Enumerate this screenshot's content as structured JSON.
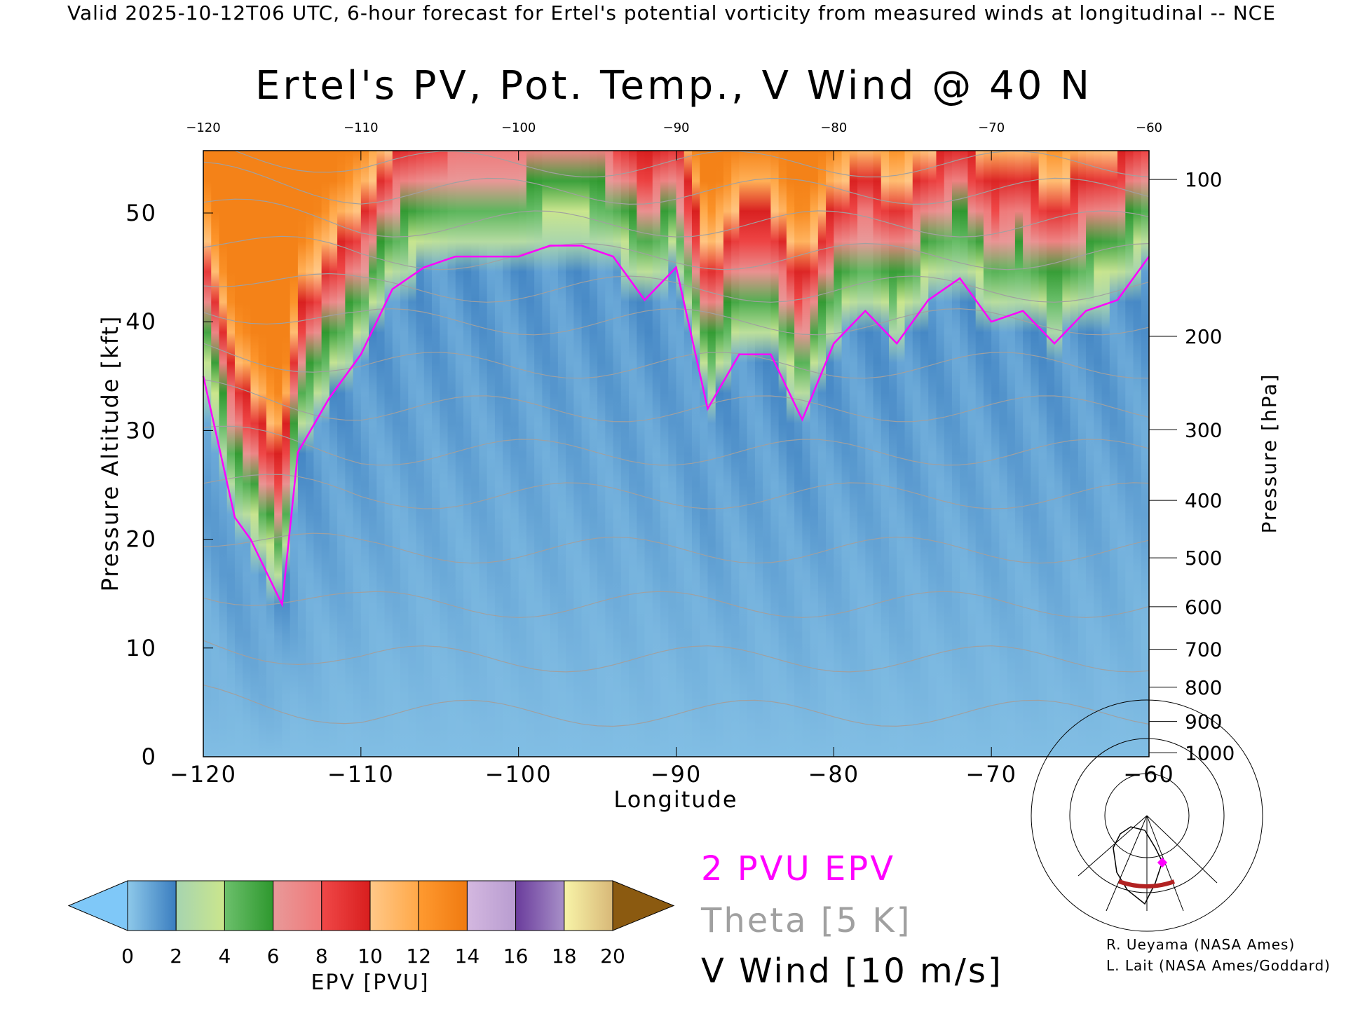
{
  "top_note": "Valid 2025-10-12T06 UTC, 6-hour forecast for Ertel's potential vorticity from measured winds at longitudinal -- NCE",
  "legend": {
    "epv": "2 PVU EPV",
    "theta": "Theta [5 K]",
    "wind": "V Wind [10 m/s]"
  },
  "credits": [
    "R. Ueyama (NASA Ames)",
    "L. Lait (NASA Ames/Goddard)"
  ],
  "colors": {
    "pv2": "#ff00ff",
    "theta": "#a0a0a0",
    "wind": "#000000",
    "map_track": "#b22222"
  },
  "chart_data": {
    "type": "heatmap",
    "title": "Ertel's PV, Pot. Temp., V Wind @ 40 N",
    "xlabel": "Longitude",
    "ylabel": "Pressure Altitude [kft]",
    "ylabel_right": "Pressure [hPa]",
    "xlim": [
      -120,
      -60
    ],
    "ylim": [
      0,
      55.7
    ],
    "x_ticks": [
      "-120",
      "-110",
      "-100",
      "-90",
      "-80",
      "-70",
      "-60"
    ],
    "x_tick_values": [
      -120,
      -110,
      -100,
      -90,
      -80,
      -70,
      -60
    ],
    "y_ticks": [
      "0",
      "10",
      "20",
      "30",
      "40",
      "50"
    ],
    "y_tick_values": [
      0,
      10,
      20,
      30,
      40,
      50
    ],
    "pressure_ticks": [
      "100",
      "200",
      "300",
      "400",
      "500",
      "600",
      "700",
      "800",
      "900",
      "1000"
    ],
    "pressure_tick_values": [
      100,
      200,
      300,
      400,
      500,
      600,
      700,
      800,
      900,
      1000
    ],
    "tropopause_2pvu": {
      "lon": [
        -120,
        -118,
        -117,
        -115,
        -114,
        -112,
        -110,
        -108,
        -106,
        -104,
        -102,
        -100,
        -98,
        -96,
        -94,
        -92,
        -90,
        -88,
        -86,
        -84,
        -82,
        -80,
        -78,
        -76,
        -74,
        -72,
        -70,
        -68,
        -66,
        -64,
        -62,
        -60
      ],
      "kft": [
        35,
        22,
        20,
        14,
        28,
        33,
        37,
        43,
        45,
        46,
        46,
        46,
        47,
        47,
        46,
        42,
        45,
        32,
        37,
        37,
        31,
        38,
        41,
        38,
        42,
        44,
        40,
        41,
        38,
        41,
        42,
        46
      ]
    },
    "theta_levels_kft": [
      4,
      9,
      14,
      19,
      24,
      28,
      32,
      36,
      40,
      43,
      46,
      49,
      52,
      54.5
    ],
    "colorbar": {
      "label": "EPV [PVU]",
      "tick_labels": [
        "0",
        "2",
        "4",
        "6",
        "8",
        "10",
        "12",
        "14",
        "16",
        "18",
        "20"
      ],
      "levels": [
        0,
        2,
        4,
        6,
        8,
        10,
        12,
        14,
        16,
        18,
        20
      ],
      "under_color": "#7fc8f8",
      "over_color": "#8b5a10",
      "interval_colors": [
        [
          "#8ec9ea",
          "#3a7dbf"
        ],
        [
          "#a6d4b0",
          "#cbe68c"
        ],
        [
          "#6cc06c",
          "#2e982e"
        ],
        [
          "#e89a9a",
          "#f07878"
        ],
        [
          "#f04848",
          "#d81e1e"
        ],
        [
          "#ffc888",
          "#ffa848"
        ],
        [
          "#ff9a30",
          "#f07a10"
        ],
        [
          "#d4b8e0",
          "#b89cd0"
        ],
        [
          "#6a3c9c",
          "#a890c8"
        ],
        [
          "#f8f4a8",
          "#d8b878"
        ]
      ]
    }
  }
}
